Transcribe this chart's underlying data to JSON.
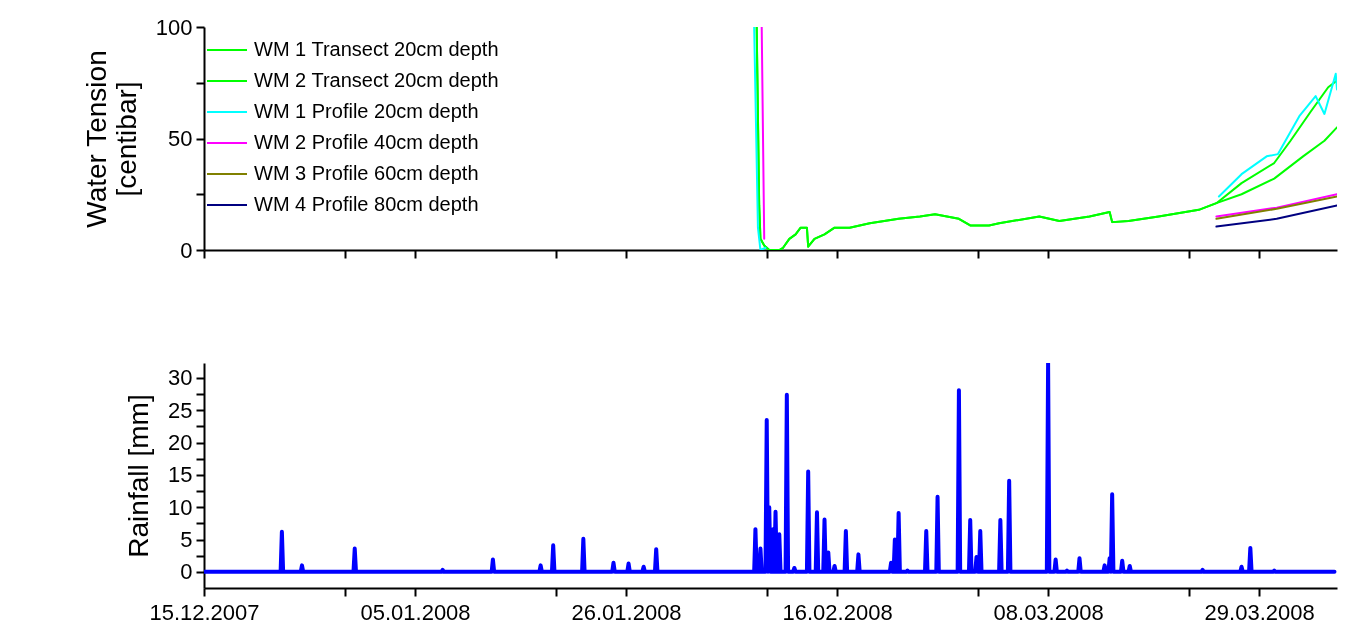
{
  "chart_data": [
    {
      "type": "line",
      "ylabel": "Water Tension [centibar]",
      "ylim": [
        0,
        100
      ],
      "yticks": [
        0,
        {
          "value": 25,
          "label": null
        },
        50,
        {
          "value": 75,
          "label": null
        },
        100
      ],
      "xlim": [
        "2007-12-15",
        "2008-04-05T18:00"
      ],
      "xticks": [
        {
          "value": "2007-12-15",
          "label": null
        },
        {
          "value": "2007-12-29",
          "label": null
        },
        {
          "value": "2008-01-05",
          "label": null
        },
        {
          "value": "2008-01-19",
          "label": null
        },
        {
          "value": "2008-01-26",
          "label": null
        },
        {
          "value": "2008-02-09",
          "label": null
        },
        {
          "value": "2008-02-16",
          "label": null
        },
        {
          "value": "2008-03-01",
          "label": null
        },
        {
          "value": "2008-03-08",
          "label": null
        },
        {
          "value": "2008-03-22",
          "label": null
        },
        {
          "value": "2008-03-29",
          "label": null
        }
      ],
      "tick_labels": "y",
      "legend": "top left",
      "series": [
        {
          "name": "WM 1 Transect 20cm depth",
          "color": "#00ff00",
          "x": [
            "2008-02-08T00:00",
            "2008-02-08T06:00",
            "2008-02-08T09:00",
            "2008-02-08T18:00",
            "2008-02-09T06:00",
            "2008-02-10T06:00",
            "2008-02-10T15:00",
            "2008-02-11T06:00",
            "2008-02-11T21:00",
            "2008-02-12T09:00",
            "2008-02-13T00:00",
            "2008-02-13T03:00",
            "2008-02-13T18:00",
            "2008-02-14T18:00",
            "2008-02-15T18:00",
            "2008-02-17T06:00",
            "2008-02-19T06:00",
            "2008-02-22T03:00",
            "2008-02-24T06:00",
            "2008-02-25T18:00",
            "2008-02-28T03:00",
            "2008-02-29T06:00",
            "2008-03-02T03:00",
            "2008-03-03T03:00",
            "2008-03-07T03:00",
            "2008-03-09T03:00",
            "2008-03-12T03:00",
            "2008-03-14T03:00",
            "2008-03-14T09:00",
            "2008-03-16T00:00",
            "2008-03-19T00:00",
            "2008-03-23T00:00",
            "2008-03-24T18:00",
            "2008-03-27T06:00",
            "2008-03-30T12:00",
            "2008-04-01T03:00",
            "2008-04-03T03:00",
            "2008-04-04T21:00",
            "2008-04-05T18:00"
          ],
          "values": [
            100,
            20,
            5,
            2,
            0,
            0,
            1,
            5,
            7,
            10,
            10,
            1.5,
            5,
            7,
            10,
            10,
            12,
            14,
            15,
            16,
            14,
            11,
            11,
            12,
            15,
            13,
            15,
            17,
            12.5,
            13,
            15,
            18,
            21,
            30,
            39,
            49,
            62,
            73,
            76
          ]
        },
        {
          "name": "WM 2 Transect 20cm depth",
          "color": "#00ff00",
          "x": [
            "2008-02-08T00:00",
            "2008-02-08T06:00",
            "2008-02-08T09:00",
            "2008-02-08T18:00",
            "2008-02-09T06:00",
            "2008-02-10T06:00",
            "2008-02-10T15:00",
            "2008-02-11T06:00",
            "2008-02-11T21:00",
            "2008-02-12T09:00",
            "2008-02-13T00:00",
            "2008-02-13T03:00",
            "2008-02-13T18:00",
            "2008-02-14T18:00",
            "2008-02-15T18:00",
            "2008-02-17T06:00",
            "2008-02-19T06:00",
            "2008-02-22T03:00",
            "2008-02-24T06:00",
            "2008-02-25T18:00",
            "2008-02-28T03:00",
            "2008-02-29T06:00",
            "2008-03-02T03:00",
            "2008-03-03T03:00",
            "2008-03-07T03:00",
            "2008-03-09T03:00",
            "2008-03-12T03:00",
            "2008-03-14T03:00",
            "2008-03-14T09:00",
            "2008-03-16T00:00",
            "2008-03-19T00:00",
            "2008-03-23T00:00",
            "2008-03-24T18:00",
            "2008-03-27T06:00",
            "2008-03-30T12:00",
            "2008-04-02T09:00",
            "2008-04-04T12:00",
            "2008-04-05T18:00"
          ],
          "values": [
            100,
            20,
            5,
            2,
            0,
            0,
            1,
            5,
            7,
            10,
            10,
            1.5,
            5,
            7,
            10,
            10,
            12,
            14,
            15,
            16,
            14,
            11,
            11,
            12,
            15,
            13,
            15,
            17,
            12.5,
            13,
            15,
            18,
            21,
            25,
            32,
            42,
            49,
            55
          ]
        },
        {
          "name": "WM 1 Profile 20cm depth",
          "color": "#00ffff",
          "x": [
            "2008-02-07T18:00",
            "2008-02-08T03:00",
            "2008-02-08T09:00",
            "2008-02-08T21:00",
            "2008-03-01T00:00",
            "2008-03-25T00:00",
            "2008-03-27T06:00",
            "2008-03-29T18:00",
            "2008-03-30T21:00",
            "2008-04-02T00:00",
            "2008-04-03T15:00",
            "2008-04-04T12:00",
            "2008-04-05T15:00",
            "2008-04-05T18:00"
          ],
          "values": [
            100,
            10,
            0,
            1,
            null,
            24,
            34,
            42,
            43,
            60,
            69,
            61,
            79,
            72
          ]
        },
        {
          "name": "WM 2 Profile 40cm depth",
          "color": "#ff00ff",
          "x": [
            "2008-02-08T12:00",
            "2008-02-08T18:00",
            "2008-03-01T00:00",
            "2008-03-24T18:00",
            "2008-03-30T18:00",
            "2008-04-05T18:00"
          ],
          "values": [
            100,
            5,
            null,
            15,
            19,
            25
          ]
        },
        {
          "name": "WM 3 Profile 60cm depth",
          "color": "#808000",
          "x": [
            "2008-03-24T18:00",
            "2008-03-30T18:00",
            "2008-04-05T18:00"
          ],
          "values": [
            14,
            18.5,
            24
          ]
        },
        {
          "name": "WM 4 Profile 80cm depth",
          "color": "#000080",
          "x": [
            "2008-03-24T18:00",
            "2008-03-30T18:00",
            "2008-04-05T18:00"
          ],
          "values": [
            10.5,
            14,
            20
          ]
        }
      ]
    },
    {
      "type": "line",
      "ylabel": "Rainfall [mm]",
      "ylim": [
        -2.5,
        32.3
      ],
      "yticks": [
        0,
        {
          "value": 2.5,
          "label": null
        },
        5,
        {
          "value": 7.5,
          "label": null
        },
        10,
        {
          "value": 12.5,
          "label": null
        },
        15,
        {
          "value": 17.5,
          "label": null
        },
        20,
        {
          "value": 22.5,
          "label": null
        },
        25,
        {
          "value": 27.5,
          "label": null
        },
        30
      ],
      "xlim": [
        "2007-12-15",
        "2008-04-05T18:00"
      ],
      "xticks": [
        {
          "value": "2007-12-15",
          "label": "15.12.2007"
        },
        {
          "value": "2007-12-29",
          "label": null
        },
        {
          "value": "2008-01-05",
          "label": "05.01.2008"
        },
        {
          "value": "2008-01-19",
          "label": null
        },
        {
          "value": "2008-01-26",
          "label": "26.01.2008"
        },
        {
          "value": "2008-02-09",
          "label": null
        },
        {
          "value": "2008-02-16",
          "label": "16.02.2008"
        },
        {
          "value": "2008-03-01",
          "label": null
        },
        {
          "value": "2008-03-08",
          "label": "08.03.2008"
        },
        {
          "value": "2008-03-22",
          "label": null
        },
        {
          "value": "2008-03-29",
          "label": "29.03.2008"
        }
      ],
      "series": [
        {
          "color": "#0000ff",
          "x": [
            "2007-12-15",
            "2007-12-22T15:00",
            "2007-12-22T18:00",
            "2007-12-22T21:00",
            "2007-12-24T15:00",
            "2007-12-24T18:00",
            "2007-12-24T21:00",
            "2007-12-29T21:00",
            "2007-12-30T00:00",
            "2007-12-30T03:00",
            "2008-01-07T15:00",
            "2008-01-07T18:00",
            "2008-01-07T21:00",
            "2008-01-12T15:00",
            "2008-01-12T18:00",
            "2008-01-12T21:00",
            "2008-01-17T09:00",
            "2008-01-17T12:00",
            "2008-01-17T15:00",
            "2008-01-18T15:00",
            "2008-01-18T18:00",
            "2008-01-18T21:00",
            "2008-01-21T15:00",
            "2008-01-21T18:00",
            "2008-01-21T21:00",
            "2008-01-24T15:00",
            "2008-01-24T18:00",
            "2008-01-24T21:00",
            "2008-01-26T03:00",
            "2008-01-26T06:00",
            "2008-01-26T09:00",
            "2008-01-27T15:00",
            "2008-01-27T18:00",
            "2008-01-27T21:00",
            "2008-01-28T21:00",
            "2008-01-29T00:00",
            "2008-01-29T03:00",
            "2008-02-07T18:00",
            "2008-02-07T21:00",
            "2008-02-08T00:00",
            "2008-02-08T06:00",
            "2008-02-08T09:00",
            "2008-02-08T12:00",
            "2008-02-08T21:00",
            "2008-02-09T00:00",
            "2008-02-09T03:00",
            "2008-02-09T06:00",
            "2008-02-09T09:00",
            "2008-02-09T12:00",
            "2008-02-09T15:00",
            "2008-02-09T18:00",
            "2008-02-09T21:00",
            "2008-02-10T00:00",
            "2008-02-10T03:00",
            "2008-02-10T06:00",
            "2008-02-10T09:00",
            "2008-02-10T21:00",
            "2008-02-11T00:00",
            "2008-02-11T03:00",
            "2008-02-11T15:00",
            "2008-02-11T18:00",
            "2008-02-11T21:00",
            "2008-02-13T00:00",
            "2008-02-13T03:00",
            "2008-02-13T06:00",
            "2008-02-13T21:00",
            "2008-02-14T00:00",
            "2008-02-14T03:00",
            "2008-02-14T15:00",
            "2008-02-14T18:00",
            "2008-02-14T21:00",
            "2008-02-15T00:00",
            "2008-02-15T03:00",
            "2008-02-15T06:00",
            "2008-02-15T15:00",
            "2008-02-15T18:00",
            "2008-02-15T21:00",
            "2008-02-16T18:00",
            "2008-02-16T21:00",
            "2008-02-17T00:00",
            "2008-02-18T00:00",
            "2008-02-18T03:00",
            "2008-02-18T06:00",
            "2008-02-21T06:00",
            "2008-02-21T09:00",
            "2008-02-21T12:00",
            "2008-02-21T15:00",
            "2008-02-21T18:00",
            "2008-02-21T21:00",
            "2008-02-22T00:00",
            "2008-02-22T03:00",
            "2008-02-22T06:00",
            "2008-02-22T21:00",
            "2008-02-23T00:00",
            "2008-02-23T03:00",
            "2008-02-24T18:00",
            "2008-02-24T21:00",
            "2008-02-25T00:00",
            "2008-02-25T21:00",
            "2008-02-26T00:00",
            "2008-02-26T03:00",
            "2008-02-28T00:00",
            "2008-02-28T03:00",
            "2008-02-28T06:00",
            "2008-02-29T03:00",
            "2008-02-29T06:00",
            "2008-02-29T09:00",
            "2008-02-29T18:00",
            "2008-02-29T21:00",
            "2008-03-01T00:00",
            "2008-03-01T03:00",
            "2008-03-01T06:00",
            "2008-03-01T09:00",
            "2008-03-03T03:00",
            "2008-03-03T06:00",
            "2008-03-03T09:00",
            "2008-03-04T00:00",
            "2008-03-04T03:00",
            "2008-03-04T06:00",
            "2008-03-07T21:00",
            "2008-03-08T00:00",
            "2008-03-08T03:00",
            "2008-03-08T15:00",
            "2008-03-08T18:00",
            "2008-03-08T21:00",
            "2008-03-09T18:00",
            "2008-03-09T21:00",
            "2008-03-10T00:00",
            "2008-03-11T00:00",
            "2008-03-11T03:00",
            "2008-03-11T06:00",
            "2008-03-13T12:00",
            "2008-03-13T15:00",
            "2008-03-13T18:00",
            "2008-03-14T00:00",
            "2008-03-14T03:00",
            "2008-03-14T06:00",
            "2008-03-14T09:00",
            "2008-03-14T12:00",
            "2008-03-15T06:00",
            "2008-03-15T09:00",
            "2008-03-15T12:00",
            "2008-03-16T00:00",
            "2008-03-16T03:00",
            "2008-03-16T06:00",
            "2008-03-23T06:00",
            "2008-03-23T09:00",
            "2008-03-23T12:00",
            "2008-03-27T03:00",
            "2008-03-27T06:00",
            "2008-03-27T09:00",
            "2008-03-28T00:00",
            "2008-03-28T03:00",
            "2008-03-28T06:00",
            "2008-03-30T09:00",
            "2008-03-30T12:00",
            "2008-03-30T15:00",
            "2008-04-05T12:00"
          ],
          "values": [
            0,
            0,
            6.2,
            0,
            0,
            1.0,
            0,
            0,
            3.6,
            0,
            0,
            0.3,
            0,
            0,
            1.9,
            0,
            0,
            1.0,
            0,
            0,
            4.1,
            0,
            0,
            5.1,
            0,
            0,
            1.4,
            0,
            0,
            1.3,
            0,
            0,
            0.8,
            0,
            0,
            3.5,
            0,
            0,
            6.6,
            0,
            0,
            3.6,
            0,
            0,
            23.5,
            0,
            10,
            0,
            0,
            6.6,
            0,
            9.3,
            0,
            0,
            5.8,
            0,
            0,
            27.4,
            0,
            0,
            0.6,
            0,
            0,
            15.5,
            0,
            0,
            9.2,
            0,
            0,
            8.1,
            0,
            0,
            3,
            0,
            0,
            0.9,
            0,
            0,
            6.3,
            0,
            0,
            2.7,
            0,
            0,
            1.4,
            0,
            0,
            5,
            0,
            0,
            9.1,
            0,
            0,
            0.2,
            0,
            0,
            6.3,
            0,
            0,
            11.6,
            0,
            0,
            28.1,
            0,
            0,
            8,
            0,
            0,
            2.3,
            0,
            0,
            6.3,
            0,
            0,
            8,
            0,
            0,
            14.1,
            0,
            0,
            32.3,
            0,
            0,
            1.9,
            0,
            0,
            0.2,
            0,
            0,
            2.1,
            0,
            0,
            1,
            0,
            0,
            2.1,
            0,
            12,
            0,
            0,
            1.7,
            0,
            0,
            0.9,
            0,
            0,
            0.3,
            0,
            0,
            0.8,
            0,
            0,
            3.7,
            0,
            0,
            0.2,
            0,
            0
          ]
        }
      ]
    }
  ]
}
